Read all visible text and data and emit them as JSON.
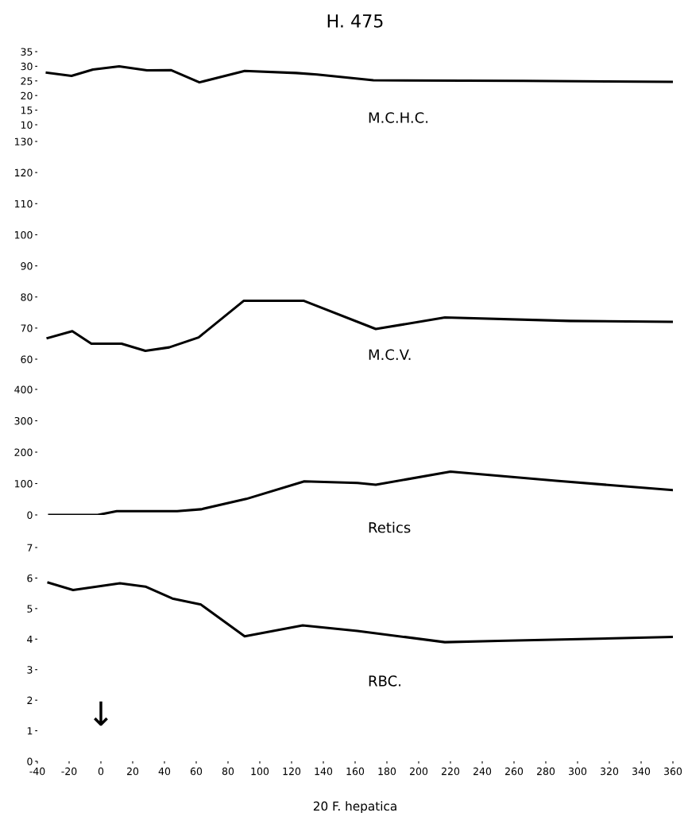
{
  "chart_data": [
    {
      "type": "line",
      "title": "H. 475",
      "tick_labels": "y",
      "xlim": [
        -40,
        360
      ],
      "ylim": [
        10,
        35
      ],
      "yticks": [
        10,
        15,
        20,
        25,
        30,
        35
      ],
      "series": [
        {
          "name": "M.C.H.C.",
          "color": "#000000",
          "x": [
            -34,
            -18.5,
            -5,
            11.5,
            29,
            44,
            62,
            90.5,
            123,
            136,
            171.5,
            266,
            360
          ],
          "values": [
            27.8,
            26.7,
            28.9,
            30.0,
            28.6,
            28.7,
            24.5,
            28.4,
            27.7,
            27.2,
            25.2,
            25.0,
            24.7
          ]
        }
      ]
    },
    {
      "type": "line",
      "tick_labels": "y",
      "xlim": [
        -40,
        360
      ],
      "ylim": [
        60,
        130
      ],
      "yticks": [
        60,
        70,
        80,
        90,
        100,
        110,
        120,
        130
      ],
      "series": [
        {
          "name": "M.C.V.",
          "color": "#000000",
          "x": [
            -33.5,
            -18,
            -6,
            13,
            28,
            43,
            61.5,
            90,
            127.5,
            173,
            216.5,
            295,
            360
          ],
          "values": [
            66.8,
            69.0,
            65.0,
            65.0,
            62.7,
            63.8,
            67.0,
            78.8,
            78.8,
            69.7,
            73.4,
            72.3,
            72.0
          ]
        }
      ]
    },
    {
      "type": "line",
      "tick_labels": "y",
      "xlim": [
        -40,
        360
      ],
      "ylim": [
        0,
        400
      ],
      "yticks": [
        0,
        100,
        200,
        300,
        400
      ],
      "series": [
        {
          "name": "Retics",
          "color": "#000000",
          "x": [
            -32.5,
            -2,
            10,
            48,
            63,
            91.5,
            128,
            161.5,
            173,
            220,
            286.5,
            360
          ],
          "values": [
            0,
            0,
            12,
            12,
            18,
            51,
            107,
            102,
            96,
            138,
            109,
            79
          ]
        }
      ]
    },
    {
      "type": "line",
      "xlabel": "20 F. hepatica",
      "xlim": [
        -40,
        360
      ],
      "ylim": [
        0,
        7
      ],
      "yticks": [
        0,
        1,
        2,
        3,
        4,
        5,
        6,
        7
      ],
      "xticks": [
        -40,
        -20,
        0,
        20,
        40,
        60,
        80,
        100,
        120,
        140,
        160,
        180,
        200,
        220,
        240,
        260,
        280,
        300,
        320,
        340,
        360
      ],
      "annotations": [
        "↓"
      ],
      "series": [
        {
          "name": "RBC.",
          "color": "#000000",
          "x": [
            -33,
            -17.5,
            12,
            28,
            45,
            63,
            90.5,
            127,
            161.5,
            216.5,
            250,
            360
          ],
          "values": [
            5.85,
            5.61,
            5.83,
            5.72,
            5.33,
            5.13,
            4.09,
            4.45,
            4.27,
            3.9,
            3.94,
            4.07
          ]
        }
      ]
    }
  ]
}
